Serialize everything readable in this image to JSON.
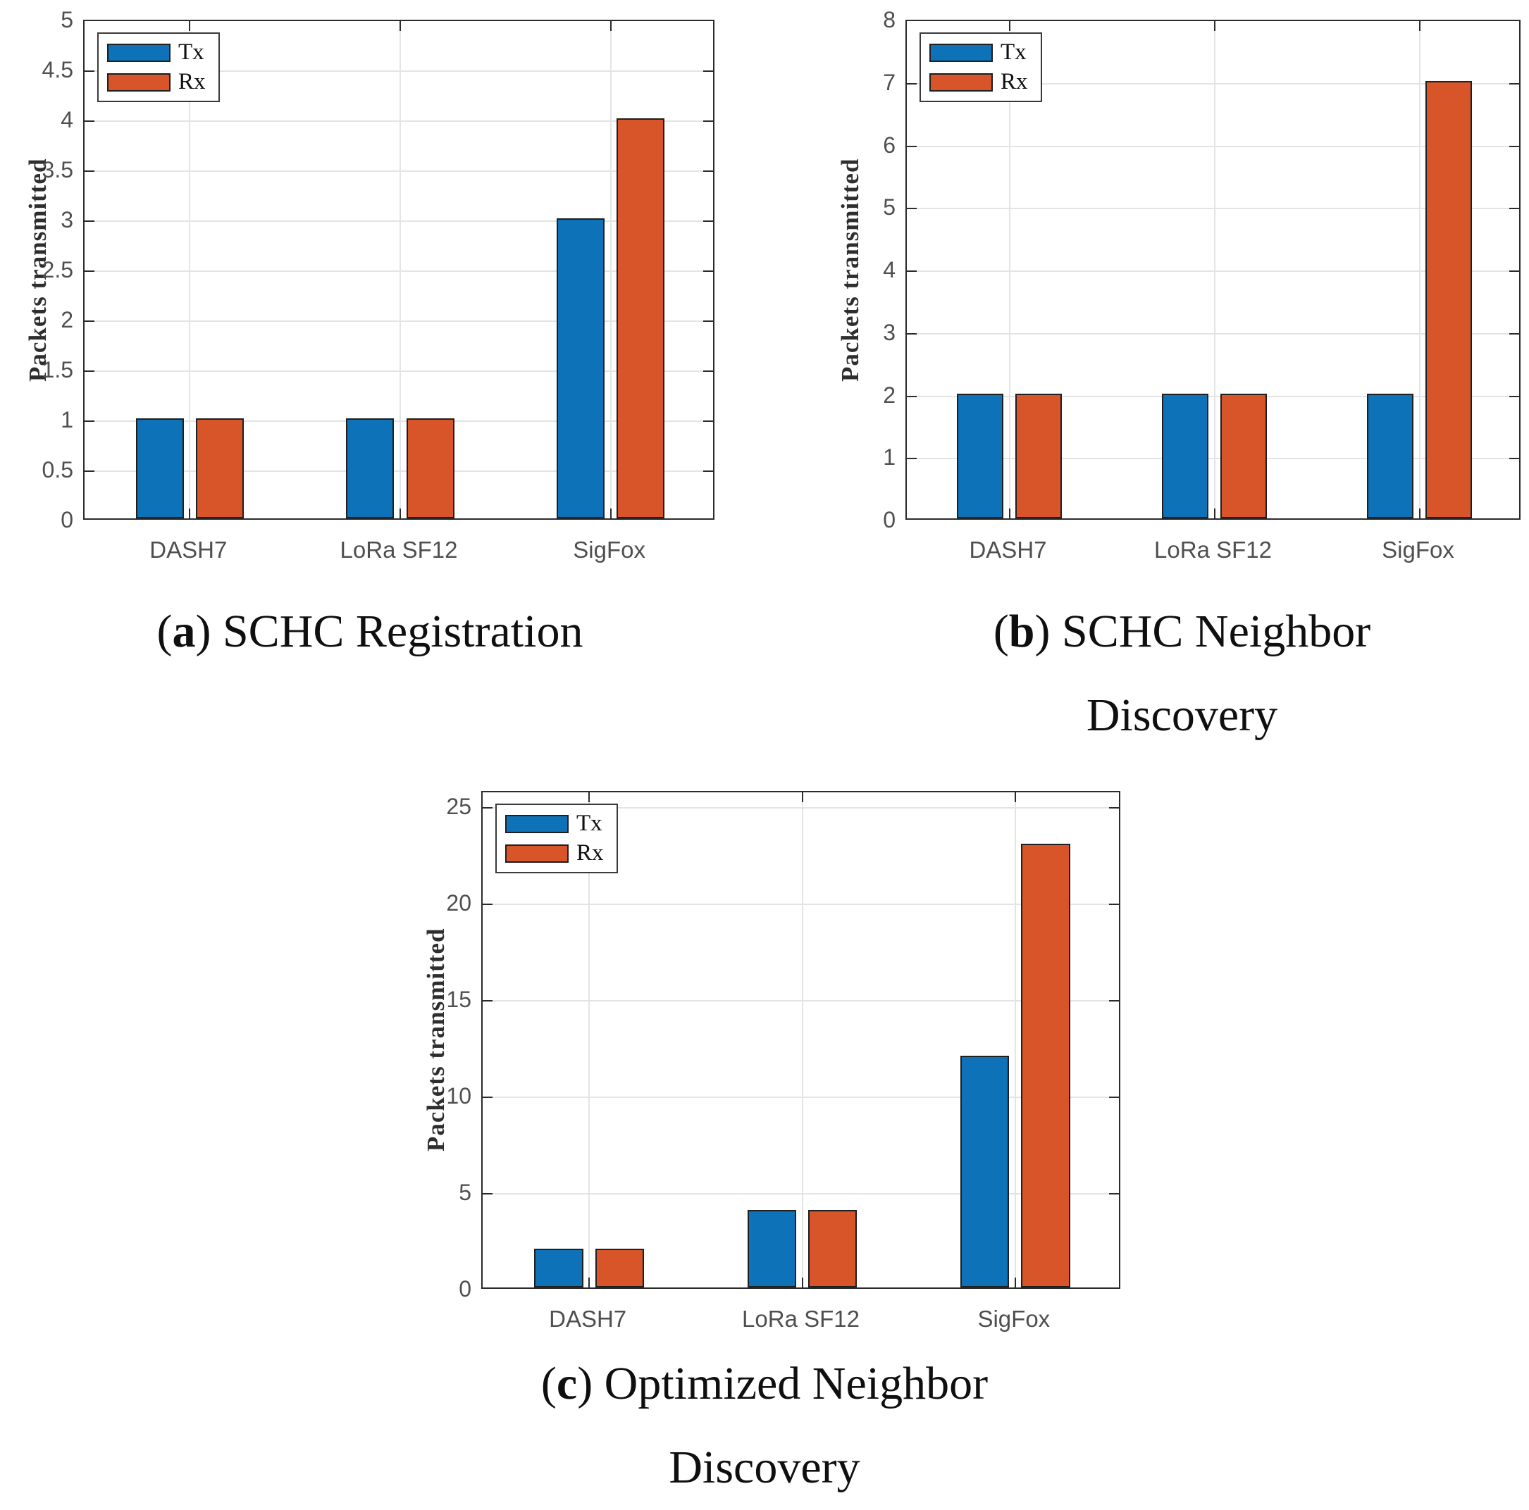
{
  "page": {
    "background": "#ffffff"
  },
  "chart_data": [
    {
      "id": "a",
      "type": "bar",
      "caption_letter": "a",
      "title": "SCHC Registration",
      "categories": [
        "DASH7",
        "LoRa SF12",
        "SigFox"
      ],
      "series": [
        {
          "name": "Tx",
          "color": "#0d72b7",
          "values": [
            1,
            1,
            3
          ]
        },
        {
          "name": "Rx",
          "color": "#d8552a",
          "values": [
            1,
            1,
            4
          ]
        }
      ],
      "xlabel": "",
      "ylabel": "Packets transmitted",
      "ylim": [
        0,
        5
      ],
      "ytick_step": 0.5,
      "ytick_max": 5,
      "grid": true,
      "legend_position": "top-left",
      "bar_edge_color": "#1f1f1f",
      "grid_color": "#e4e4e4",
      "axis_color": "#2b2b2b"
    },
    {
      "id": "b",
      "type": "bar",
      "caption_letter": "b",
      "title": "SCHC Neighbor Discovery",
      "categories": [
        "DASH7",
        "LoRa SF12",
        "SigFox"
      ],
      "series": [
        {
          "name": "Tx",
          "color": "#0d72b7",
          "values": [
            2,
            2,
            2
          ]
        },
        {
          "name": "Rx",
          "color": "#d8552a",
          "values": [
            2,
            2,
            7
          ]
        }
      ],
      "xlabel": "",
      "ylabel": "Packets transmitted",
      "ylim": [
        0,
        8
      ],
      "ytick_step": 1,
      "ytick_max": 8,
      "grid": true,
      "legend_position": "top-left",
      "bar_edge_color": "#1f1f1f",
      "grid_color": "#e4e4e4",
      "axis_color": "#2b2b2b"
    },
    {
      "id": "c",
      "type": "bar",
      "caption_letter": "c",
      "title": "Optimized Neighbor Discovery",
      "categories": [
        "DASH7",
        "LoRa SF12",
        "SigFox"
      ],
      "series": [
        {
          "name": "Tx",
          "color": "#0d72b7",
          "values": [
            2,
            4,
            12
          ]
        },
        {
          "name": "Rx",
          "color": "#d8552a",
          "values": [
            2,
            4,
            23
          ]
        }
      ],
      "xlabel": "",
      "ylabel": "Packets transmitted",
      "ylim": [
        0,
        25.8
      ],
      "ytick_step": 5,
      "ytick_max": 25,
      "grid": true,
      "legend_position": "top-left",
      "bar_edge_color": "#1f1f1f",
      "grid_color": "#e4e4e4",
      "axis_color": "#2b2b2b"
    }
  ]
}
